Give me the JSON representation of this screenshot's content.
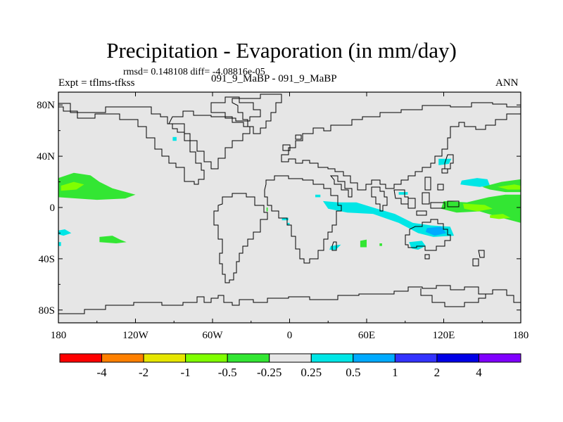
{
  "title": "Precipitation - Evaporation (in mm/day)",
  "stats_text": "rmsd= 0.148108 diff= -4.08816e-05",
  "expt_label": "Expt = tflms-tfkss",
  "case_label": "091_9_MaBP - 091_9_MaBP",
  "season_label": "ANN",
  "chart_data": {
    "type": "heatmap",
    "description_projection": "cylindrical equidistant map",
    "xlim": [
      -180,
      180
    ],
    "ylim": [
      -90,
      90
    ],
    "x_ticks": [
      -180,
      -120,
      -60,
      0,
      60,
      120,
      180
    ],
    "x_tick_labels": [
      "180",
      "120W",
      "60W",
      "0",
      "60E",
      "120E",
      "180"
    ],
    "y_ticks": [
      80,
      40,
      0,
      -40,
      -80
    ],
    "y_tick_labels": [
      "80N",
      "40N",
      "0",
      "40S",
      "80S"
    ],
    "background_color": "#e6e6e6",
    "colorbar": {
      "colors": [
        "#ff0000",
        "#ff8000",
        "#e6e600",
        "#80ff00",
        "#33e633",
        "#e6e6e6",
        "#00e6e6",
        "#00aaff",
        "#3333ff",
        "#0000e6",
        "#8000ff"
      ],
      "labels": [
        "-4",
        "-2",
        "-1",
        "-0.5",
        "-0.25",
        "0.25",
        "0.5",
        "1",
        "2",
        "4"
      ]
    },
    "contour_regions": [
      {
        "level": "-0.5 to -0.25",
        "color": "#33e633",
        "points": [
          [
            -180,
            23
          ],
          [
            -168,
            27
          ],
          [
            -155,
            25
          ],
          [
            -148,
            20
          ],
          [
            -138,
            15
          ],
          [
            -120,
            10
          ],
          [
            -128,
            7
          ],
          [
            -150,
            6
          ],
          [
            -180,
            8
          ]
        ]
      },
      {
        "level": "-1 to -0.5",
        "color": "#80ff00",
        "points": [
          [
            -178,
            17
          ],
          [
            -168,
            20
          ],
          [
            -160,
            18
          ],
          [
            -166,
            14
          ],
          [
            -178,
            13
          ]
        ]
      },
      {
        "level": "-0.5 to -0.25",
        "color": "#33e633",
        "points": [
          [
            -148,
            -23
          ],
          [
            -138,
            -22
          ],
          [
            -132,
            -25
          ],
          [
            -127,
            -27
          ],
          [
            -135,
            -28
          ],
          [
            -148,
            -27
          ]
        ]
      },
      {
        "level": "0.25 to 0.5",
        "color": "#00e6e6",
        "points": [
          [
            -180,
            -18
          ],
          [
            -175,
            -17
          ],
          [
            -170,
            -20
          ],
          [
            -176,
            -22
          ],
          [
            -180,
            -21
          ]
        ]
      },
      {
        "level": "0.25 to 0.5",
        "color": "#00e6e6",
        "points": [
          [
            -180,
            -27
          ],
          [
            -178,
            -27
          ],
          [
            -178,
            -30
          ],
          [
            -180,
            -30
          ]
        ]
      },
      {
        "level": "0.25 to 0.5",
        "color": "#00e6e6",
        "points": [
          [
            26,
            5
          ],
          [
            38,
            4
          ],
          [
            52,
            4
          ],
          [
            68,
            -1
          ],
          [
            82,
            -5
          ],
          [
            96,
            -12
          ],
          [
            110,
            -14
          ],
          [
            125,
            -15
          ],
          [
            128,
            -22
          ],
          [
            112,
            -23
          ],
          [
            100,
            -20
          ],
          [
            85,
            -12
          ],
          [
            65,
            -5
          ],
          [
            45,
            -4
          ],
          [
            30,
            -1
          ]
        ]
      },
      {
        "level": "0.5 to 1",
        "color": "#00aaff",
        "points": [
          [
            107,
            -16
          ],
          [
            118,
            -15
          ],
          [
            122,
            -20
          ],
          [
            113,
            -22
          ],
          [
            106,
            -19
          ]
        ]
      },
      {
        "level": "0.25 to 0.5",
        "color": "#00e6e6",
        "points": [
          [
            134,
            21
          ],
          [
            146,
            23
          ],
          [
            154,
            22
          ],
          [
            156,
            17
          ],
          [
            148,
            16
          ],
          [
            140,
            17
          ],
          [
            133,
            18
          ]
        ]
      },
      {
        "level": "0.25 to 0.5",
        "color": "#00e6e6",
        "points": [
          [
            116,
            38
          ],
          [
            126,
            38
          ],
          [
            124,
            34
          ],
          [
            116,
            33
          ]
        ]
      },
      {
        "level": "0.25 to 0.5",
        "color": "#00e6e6",
        "points": [
          [
            32,
            -30
          ],
          [
            40,
            -29
          ],
          [
            36,
            -33
          ],
          [
            31,
            -33
          ]
        ]
      },
      {
        "level": "0.25 to 0.5",
        "color": "#00e6e6",
        "points": [
          [
            -2,
            -12
          ],
          [
            0,
            -12
          ],
          [
            0,
            -14
          ],
          [
            -2,
            -14
          ]
        ]
      },
      {
        "level": "0.25 to 0.5",
        "color": "#00e6e6",
        "points": [
          [
            -6,
            -8
          ],
          [
            -1,
            -8
          ],
          [
            -1,
            -10
          ],
          [
            -6,
            -10
          ]
        ]
      },
      {
        "level": "0.25 to 0.5",
        "color": "#00e6e6",
        "points": [
          [
            93,
            -27
          ],
          [
            103,
            -26
          ],
          [
            106,
            -30
          ],
          [
            100,
            -33
          ],
          [
            95,
            -32
          ]
        ]
      },
      {
        "level": "0.25 to 0.5",
        "color": "#00e6e6",
        "points": [
          [
            20,
            10
          ],
          [
            24,
            10
          ],
          [
            24,
            8
          ],
          [
            20,
            8
          ]
        ]
      },
      {
        "level": "0.25 to 0.5",
        "color": "#00e6e6",
        "points": [
          [
            85,
            12
          ],
          [
            92,
            12
          ],
          [
            92,
            10
          ],
          [
            85,
            10
          ]
        ]
      },
      {
        "level": "0.25 to 0.5",
        "color": "#00e6e6",
        "points": [
          [
            -91,
            55
          ],
          [
            -88,
            55
          ],
          [
            -88,
            52
          ],
          [
            -91,
            52
          ]
        ]
      },
      {
        "level": "-0.5 to -0.25",
        "color": "#33e633",
        "points": [
          [
            120,
            5
          ],
          [
            138,
            4
          ],
          [
            155,
            8
          ],
          [
            168,
            10
          ],
          [
            180,
            10
          ],
          [
            180,
            -12
          ],
          [
            165,
            -8
          ],
          [
            148,
            -3
          ],
          [
            130,
            -4
          ],
          [
            118,
            -1
          ]
        ]
      },
      {
        "level": "-1 to -0.5",
        "color": "#80ff00",
        "points": [
          [
            135,
            3
          ],
          [
            152,
            2
          ],
          [
            158,
            -1
          ],
          [
            146,
            -3
          ],
          [
            136,
            -1
          ]
        ]
      },
      {
        "level": "-1 to -0.5",
        "color": "#80ff00",
        "points": [
          [
            156,
            -6
          ],
          [
            166,
            -5
          ],
          [
            172,
            -8
          ],
          [
            163,
            -9
          ],
          [
            156,
            -8
          ]
        ]
      },
      {
        "level": "-0.5 to -0.25",
        "color": "#33e633",
        "points": [
          [
            150,
            16
          ],
          [
            165,
            20
          ],
          [
            180,
            22
          ],
          [
            180,
            12
          ],
          [
            168,
            12
          ],
          [
            156,
            14
          ]
        ]
      },
      {
        "level": "-1 to -0.5",
        "color": "#80ff00",
        "points": [
          [
            162,
            16
          ],
          [
            175,
            18
          ],
          [
            180,
            17
          ],
          [
            180,
            14
          ],
          [
            170,
            14
          ]
        ]
      },
      {
        "level": "-0.5 to -0.25",
        "color": "#33e633",
        "points": [
          [
            55,
            -26
          ],
          [
            60,
            -25
          ],
          [
            60,
            -31
          ],
          [
            55,
            -31
          ]
        ]
      },
      {
        "level": "-0.5 to -0.25",
        "color": "#33e633",
        "points": [
          [
            -18,
            0
          ],
          [
            -17,
            0
          ],
          [
            -17,
            -3
          ],
          [
            -18,
            -3
          ]
        ]
      },
      {
        "level": "-0.5 to -0.25",
        "color": "#33e633",
        "points": [
          [
            70,
            -28
          ],
          [
            72,
            -28
          ],
          [
            72,
            -30
          ],
          [
            70,
            -30
          ]
        ]
      }
    ]
  }
}
